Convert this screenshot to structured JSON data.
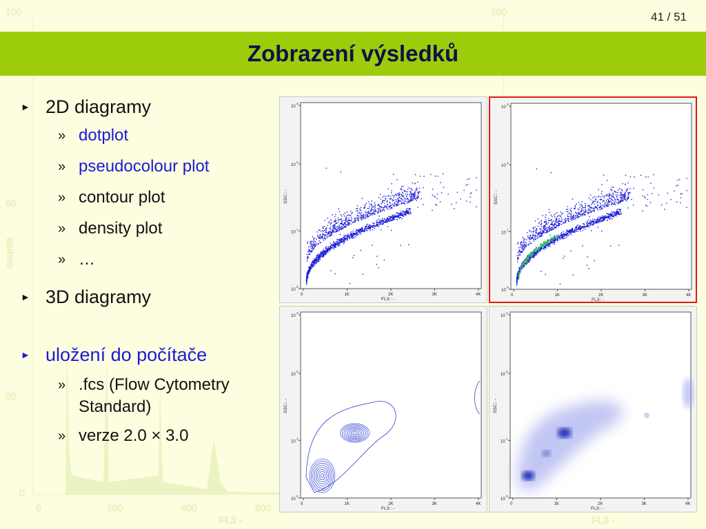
{
  "page_number": "41 / 51",
  "title": "Zobrazení výsledků",
  "bullets": [
    {
      "label": "2D diagramy",
      "subitems": [
        {
          "label": "dotplot",
          "highlight": true
        },
        {
          "label": "pseudocolour plot",
          "highlight": true
        },
        {
          "label": "contour plot",
          "highlight": false
        },
        {
          "label": "density plot",
          "highlight": false
        },
        {
          "label": "…",
          "highlight": false
        }
      ]
    },
    {
      "label": "3D diagramy",
      "subitems": []
    },
    {
      "label": "uložení do počítače",
      "subitems": [
        {
          "label": ".fcs (Flow Cytometry Standard)",
          "highlight": false
        },
        {
          "label": "verze 2.0 × 3.0",
          "highlight": false
        }
      ]
    }
  ],
  "background_chart": {
    "ylabel": "counts",
    "xlabel": "FL3 -",
    "yticks": [
      "100",
      "60",
      "20",
      "0"
    ],
    "xticks": [
      "0",
      "200",
      "400",
      "600"
    ]
  },
  "plot_axes": {
    "ylabel": "SSC:: -",
    "xlabel": "FL3:: -",
    "yticks": [
      "10",
      "10",
      "10",
      "10"
    ],
    "yexp": [
      "0",
      "1",
      "2",
      "3"
    ],
    "xticks": [
      "0",
      "1K",
      "2K",
      "3K",
      "4K"
    ]
  },
  "panels": [
    {
      "name": "dotplot",
      "style": "dots",
      "selected": false
    },
    {
      "name": "pseudocolour",
      "style": "pseudo",
      "selected": true
    },
    {
      "name": "contour",
      "style": "contour",
      "selected": false
    },
    {
      "name": "density",
      "style": "density",
      "selected": false
    }
  ],
  "colors": {
    "title_bar": "#9ccc0a",
    "dot_blue": "#1a1ad6",
    "highlight_text": "#1a1ad6",
    "selection_border": "#e01818"
  }
}
